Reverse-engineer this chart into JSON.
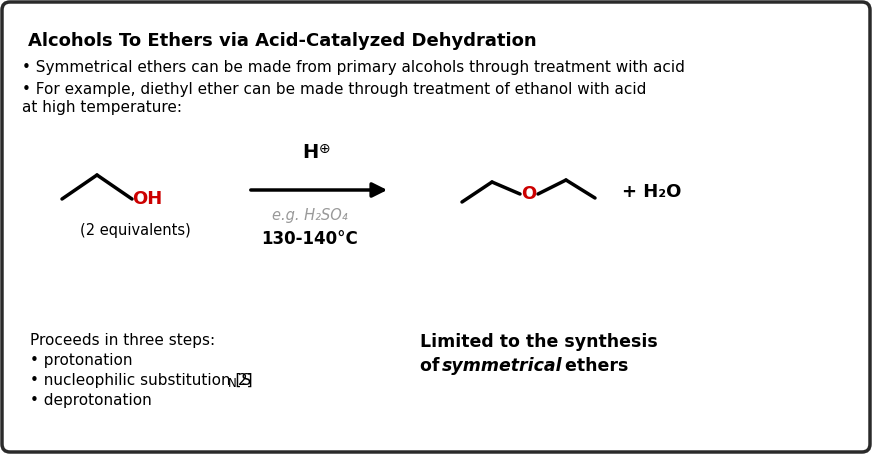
{
  "title": "Alcohols To Ethers via Acid-Catalyzed Dehydration",
  "bullet1": "• Symmetrical ethers can be made from primary alcohols through treatment with acid",
  "bullet2a": "• For example, diethyl ether can be made through treatment of ethanol with acid",
  "bullet2b": "at high temperature:",
  "two_equiv": "(2 equivalents)",
  "catalyst_label": "e.g. H₂SO₄",
  "temp_label": "130-140°C",
  "water": "+ H₂O",
  "proceeds_title": "Proceeds in three steps:",
  "step1": "• protonation",
  "step3": "• deprotonation",
  "limited_line1": "Limited to the synthesis",
  "bg_color": "#ffffff",
  "border_color": "#2a2a2a",
  "text_color": "#000000",
  "red_color": "#cc0000",
  "gray_color": "#999999",
  "fig_width": 8.72,
  "fig_height": 4.54,
  "dpi": 100
}
